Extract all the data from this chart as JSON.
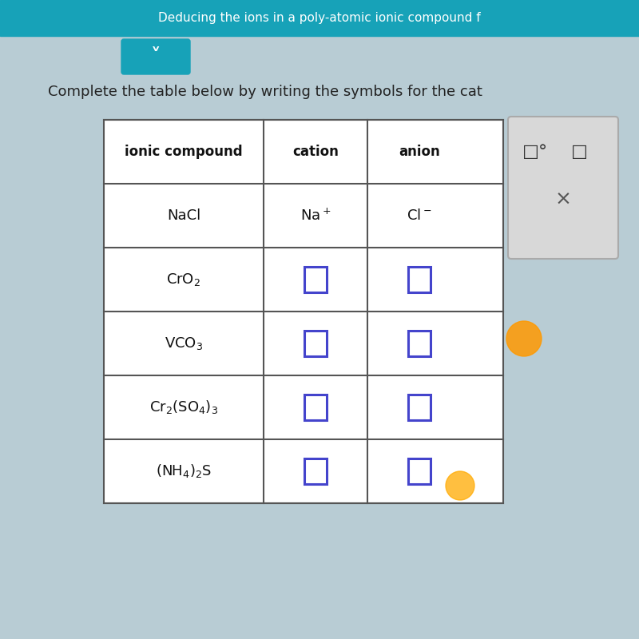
{
  "title": "Complete the table below by writing the symbols for the cat",
  "bg_color": "#d6eaf8",
  "header_bar_color": "#2196a8",
  "table_bg": "#f0f0f0",
  "cell_bg": "#e8e8e8",
  "header_bg": "#ffffff",
  "box_color": "#5555dd",
  "col_headers": [
    "ionic compound",
    "cation",
    "anion"
  ],
  "rows": [
    {
      "compound": "NaCl",
      "cation_text": "Na$^+$",
      "anion_text": "Cl$^-$",
      "cation_box": false,
      "anion_box": false
    },
    {
      "compound": "CrO$_2$",
      "cation_text": "",
      "anion_text": "",
      "cation_box": true,
      "anion_box": true
    },
    {
      "compound": "VCO$_3$",
      "cation_text": "",
      "anion_text": "",
      "cation_box": true,
      "anion_box": true
    },
    {
      "compound": "Cr$_2$(SO$_4$)$_3$",
      "cation_text": "",
      "anion_text": "",
      "cation_box": true,
      "anion_box": true
    },
    {
      "compound": "(NH$_4$)$_2$S",
      "cation_text": "",
      "anion_text": "",
      "cation_box": true,
      "anion_box": true
    }
  ],
  "top_banner_color": "#17a2b8",
  "top_banner_text": "Deducing the ions in a poly-atomic ionic compound f",
  "panel_bg": "#e0e0e0",
  "panel_items": [
    "□°",
    "□"
  ],
  "x_symbol": "×",
  "orange_dot1": [
    0.82,
    0.47
  ],
  "orange_dot2": [
    0.72,
    0.24
  ]
}
